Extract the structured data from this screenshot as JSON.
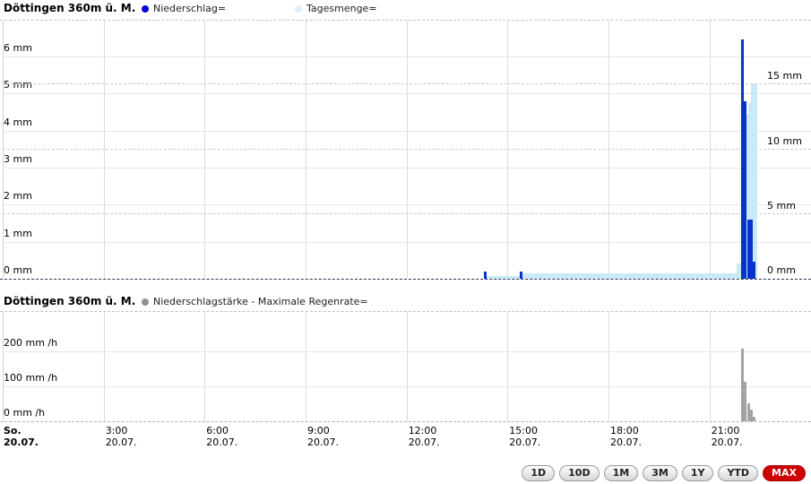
{
  "colors": {
    "precip_bar": "#0533cc",
    "precip_legend_dot": "#0000e0",
    "daily_area": "#c9e8f8",
    "daily_legend_dot": "#ddf0fb",
    "rate_bar": "#a3a3a3",
    "rate_legend_dot": "#8f8f8f",
    "grid_solid": "#e6e6e6",
    "grid_vertical": "#dcdcdc",
    "grid_dashed": "#c8c8c8",
    "left_border": "#d0d0d0",
    "active_button_bg": "#cc0000"
  },
  "chart_data": [
    {
      "type": "bar",
      "title": "Döttingen 360m ü. M.",
      "x_axis": {
        "unit": "hours",
        "range_hours": [
          0,
          24
        ],
        "ticks": [
          {
            "t": 0,
            "line1": "So.",
            "line2": "20.07.",
            "bold": true
          },
          {
            "t": 3,
            "line1": "3:00",
            "line2": "20.07."
          },
          {
            "t": 6,
            "line1": "6:00",
            "line2": "20.07."
          },
          {
            "t": 9,
            "line1": "9:00",
            "line2": "20.07."
          },
          {
            "t": 12,
            "line1": "12:00",
            "line2": "20.07."
          },
          {
            "t": 15,
            "line1": "15:00",
            "line2": "20.07."
          },
          {
            "t": 18,
            "line1": "18:00",
            "line2": "20.07."
          },
          {
            "t": 21,
            "line1": "21:00",
            "line2": "20.07."
          }
        ]
      },
      "left_axis_ticks": [
        {
          "v": 0,
          "label": "0 mm"
        },
        {
          "v": 1,
          "label": "1 mm"
        },
        {
          "v": 2,
          "label": "2 mm"
        },
        {
          "v": 3,
          "label": "3 mm"
        },
        {
          "v": 4,
          "label": "4 mm"
        },
        {
          "v": 5,
          "label": "5 mm"
        },
        {
          "v": 6,
          "label": "6 mm"
        }
      ],
      "right_axis_ticks": [
        {
          "v": 0,
          "label": "0 mm"
        },
        {
          "v": 5,
          "label": "5 mm"
        },
        {
          "v": 10,
          "label": "10 mm"
        },
        {
          "v": 15,
          "label": "15 mm"
        }
      ],
      "series": [
        {
          "name": "Niederschlag=",
          "kind": "bar",
          "axis": "left",
          "unit": "mm",
          "points": [
            {
              "t": 14.33,
              "v": 0.2
            },
            {
              "t": 15.39,
              "v": 0.2
            },
            {
              "t": 21.98,
              "v": 6.45
            },
            {
              "t": 22.07,
              "v": 4.8
            },
            {
              "t": 22.16,
              "v": 1.6
            },
            {
              "t": 22.24,
              "v": 1.6
            },
            {
              "t": 22.32,
              "v": 0.45
            }
          ]
        },
        {
          "name": "Tagesmenge=",
          "kind": "step-area",
          "axis": "right",
          "unit": "mm",
          "steps": [
            {
              "t0": 14.33,
              "t1": 15.39,
              "v": 0.2
            },
            {
              "t0": 15.39,
              "t1": 21.81,
              "v": 0.45
            },
            {
              "t0": 21.81,
              "t1": 21.94,
              "v": 1.2
            },
            {
              "t0": 21.94,
              "t1": 22.07,
              "v": 7.9
            },
            {
              "t0": 22.07,
              "t1": 22.16,
              "v": 12.7
            },
            {
              "t0": 22.16,
              "t1": 22.24,
              "v": 13.6
            },
            {
              "t0": 22.24,
              "t1": 22.42,
              "v": 15.0
            }
          ]
        }
      ]
    },
    {
      "type": "bar",
      "title": "Döttingen 360m ü. M.",
      "left_axis_ticks": [
        {
          "v": 0,
          "label": "0 mm /h"
        },
        {
          "v": 100,
          "label": "100 mm /h"
        },
        {
          "v": 200,
          "label": "200 mm /h"
        }
      ],
      "series": [
        {
          "name": "Niederschlagstärke - Maximale Regenrate=",
          "kind": "bar",
          "unit": "mm/h",
          "points": [
            {
              "t": 21.98,
              "v": 207
            },
            {
              "t": 22.07,
              "v": 112
            },
            {
              "t": 22.16,
              "v": 50
            },
            {
              "t": 22.24,
              "v": 33
            },
            {
              "t": 22.32,
              "v": 13
            }
          ]
        }
      ]
    }
  ],
  "range_buttons": {
    "items": [
      "1D",
      "10D",
      "1M",
      "3M",
      "1Y",
      "YTD",
      "MAX"
    ],
    "active": "MAX"
  }
}
